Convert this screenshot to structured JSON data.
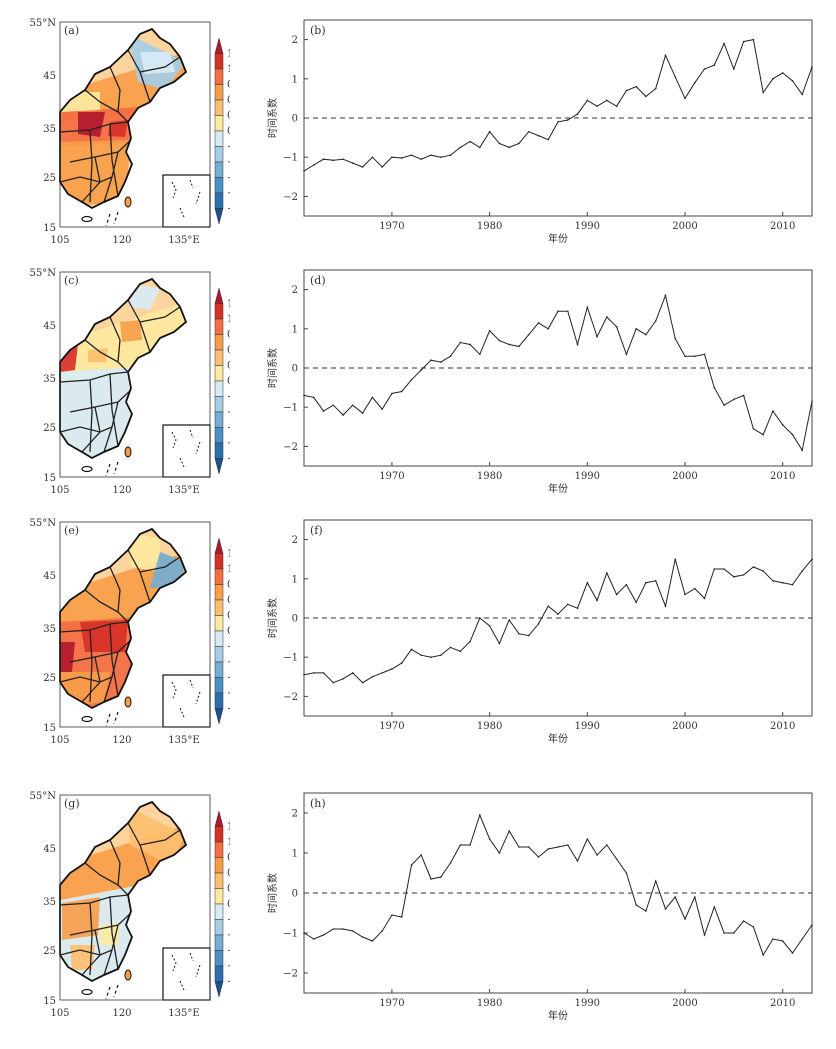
{
  "common": {
    "map_lat_ticks": [
      "55°N",
      "45",
      "35",
      "25",
      "15"
    ],
    "map_lon_ticks": [
      "105",
      "120",
      "135°E"
    ],
    "colorbar_ticks": [
      "1.5",
      "1.2",
      "0.9",
      "0.6",
      "0.3",
      "0",
      "−0.3",
      "−0.6",
      "−0.9",
      "−1.2",
      "−1.5"
    ],
    "colorbar_colors": [
      "#b2182b",
      "#d73027",
      "#f46d43",
      "#f99d4a",
      "#fdbf6f",
      "#fee9a0",
      "#d7ebf5",
      "#a6cde6",
      "#74add1",
      "#4a90c8",
      "#2c6fb0",
      "#1d4f91"
    ],
    "ts_ylabel": "时间系数",
    "ts_xlabel": "年份",
    "ts_xticks": [
      "1970",
      "1980",
      "1990",
      "2000",
      "2010"
    ],
    "ts_yticks": [
      "2",
      "1",
      "0",
      "−1",
      "−2"
    ]
  },
  "panels": [
    {
      "map_label": "(a)",
      "ts_label": "(b)"
    },
    {
      "map_label": "(c)",
      "ts_label": "(d)"
    },
    {
      "map_label": "(e)",
      "ts_label": "(f)"
    },
    {
      "map_label": "(g)",
      "ts_label": "(h)"
    }
  ],
  "chart_data": [
    {
      "type": "line",
      "title": "(b)",
      "xlabel": "年份",
      "ylabel": "时间系数",
      "xlim": [
        1961,
        2013
      ],
      "ylim": [
        -2.5,
        2.5
      ],
      "reference_line": 0,
      "x": [
        1961,
        1962,
        1963,
        1964,
        1965,
        1966,
        1967,
        1968,
        1969,
        1970,
        1971,
        1972,
        1973,
        1974,
        1975,
        1976,
        1977,
        1978,
        1979,
        1980,
        1981,
        1982,
        1983,
        1984,
        1985,
        1986,
        1987,
        1988,
        1989,
        1990,
        1991,
        1992,
        1993,
        1994,
        1995,
        1996,
        1997,
        1998,
        1999,
        2000,
        2001,
        2002,
        2003,
        2004,
        2005,
        2006,
        2007,
        2008,
        2009,
        2010,
        2011,
        2012,
        2013
      ],
      "values": [
        -1.35,
        -1.2,
        -1.05,
        -1.08,
        -1.05,
        -1.15,
        -1.25,
        -1.0,
        -1.25,
        -1.0,
        -1.02,
        -0.95,
        -1.05,
        -0.95,
        -1.0,
        -0.95,
        -0.75,
        -0.6,
        -0.75,
        -0.35,
        -0.65,
        -0.75,
        -0.65,
        -0.35,
        -0.45,
        -0.55,
        -0.1,
        -0.05,
        0.1,
        0.45,
        0.3,
        0.45,
        0.3,
        0.7,
        0.8,
        0.55,
        0.75,
        1.6,
        1.05,
        0.5,
        0.9,
        1.25,
        1.35,
        1.9,
        1.25,
        1.95,
        2.0,
        0.65,
        1.0,
        1.15,
        0.95,
        0.6,
        1.3
      ]
    },
    {
      "type": "line",
      "title": "(d)",
      "xlabel": "年份",
      "ylabel": "时间系数",
      "xlim": [
        1961,
        2013
      ],
      "ylim": [
        -2.5,
        2.5
      ],
      "reference_line": 0,
      "x": [
        1961,
        1962,
        1963,
        1964,
        1965,
        1966,
        1967,
        1968,
        1969,
        1970,
        1971,
        1972,
        1973,
        1974,
        1975,
        1976,
        1977,
        1978,
        1979,
        1980,
        1981,
        1982,
        1983,
        1984,
        1985,
        1986,
        1987,
        1988,
        1989,
        1990,
        1991,
        1992,
        1993,
        1994,
        1995,
        1996,
        1997,
        1998,
        1999,
        2000,
        2001,
        2002,
        2003,
        2004,
        2005,
        2006,
        2007,
        2008,
        2009,
        2010,
        2011,
        2012,
        2013
      ],
      "values": [
        -0.7,
        -0.75,
        -1.1,
        -0.95,
        -1.2,
        -0.95,
        -1.15,
        -0.75,
        -1.05,
        -0.65,
        -0.6,
        -0.3,
        -0.05,
        0.2,
        0.15,
        0.3,
        0.65,
        0.6,
        0.35,
        0.95,
        0.7,
        0.6,
        0.55,
        0.85,
        1.15,
        1.0,
        1.45,
        1.45,
        0.6,
        1.55,
        0.8,
        1.3,
        1.05,
        0.35,
        1.0,
        0.85,
        1.2,
        1.85,
        0.75,
        0.3,
        0.3,
        0.35,
        -0.5,
        -0.95,
        -0.8,
        -0.7,
        -1.55,
        -1.7,
        -1.1,
        -1.45,
        -1.7,
        -2.1,
        -0.85
      ]
    },
    {
      "type": "line",
      "title": "(f)",
      "xlabel": "年份",
      "ylabel": "时间系数",
      "xlim": [
        1961,
        2013
      ],
      "ylim": [
        -2.5,
        2.5
      ],
      "reference_line": 0,
      "x": [
        1961,
        1962,
        1963,
        1964,
        1965,
        1966,
        1967,
        1968,
        1969,
        1970,
        1971,
        1972,
        1973,
        1974,
        1975,
        1976,
        1977,
        1978,
        1979,
        1980,
        1981,
        1982,
        1983,
        1984,
        1985,
        1986,
        1987,
        1988,
        1989,
        1990,
        1991,
        1992,
        1993,
        1994,
        1995,
        1996,
        1997,
        1998,
        1999,
        2000,
        2001,
        2002,
        2003,
        2004,
        2005,
        2006,
        2007,
        2008,
        2009,
        2010,
        2011,
        2012,
        2013
      ],
      "values": [
        -1.45,
        -1.4,
        -1.4,
        -1.65,
        -1.55,
        -1.4,
        -1.65,
        -1.5,
        -1.4,
        -1.3,
        -1.15,
        -0.8,
        -0.95,
        -1.0,
        -0.95,
        -0.75,
        -0.85,
        -0.6,
        0.0,
        -0.2,
        -0.65,
        -0.05,
        -0.4,
        -0.45,
        -0.15,
        0.3,
        0.1,
        0.35,
        0.25,
        0.9,
        0.45,
        1.15,
        0.6,
        0.85,
        0.4,
        0.9,
        0.95,
        0.3,
        1.5,
        0.6,
        0.75,
        0.5,
        1.25,
        1.25,
        1.05,
        1.1,
        1.3,
        1.2,
        0.95,
        0.9,
        0.85,
        1.2,
        1.5
      ]
    },
    {
      "type": "line",
      "title": "(h)",
      "xlabel": "年份",
      "ylabel": "时间系数",
      "xlim": [
        1961,
        2013
      ],
      "ylim": [
        -2.5,
        2.5
      ],
      "reference_line": 0,
      "x": [
        1961,
        1962,
        1963,
        1964,
        1965,
        1966,
        1967,
        1968,
        1969,
        1970,
        1971,
        1972,
        1973,
        1974,
        1975,
        1976,
        1977,
        1978,
        1979,
        1980,
        1981,
        1982,
        1983,
        1984,
        1985,
        1986,
        1987,
        1988,
        1989,
        1990,
        1991,
        1992,
        1993,
        1994,
        1995,
        1996,
        1997,
        1998,
        1999,
        2000,
        2001,
        2002,
        2003,
        2004,
        2005,
        2006,
        2007,
        2008,
        2009,
        2010,
        2011,
        2012,
        2013
      ],
      "values": [
        -1.0,
        -1.15,
        -1.05,
        -0.9,
        -0.9,
        -0.95,
        -1.1,
        -1.2,
        -0.95,
        -0.55,
        -0.6,
        0.7,
        0.95,
        0.35,
        0.4,
        0.75,
        1.2,
        1.2,
        1.95,
        1.35,
        1.0,
        1.55,
        1.15,
        1.15,
        0.9,
        1.1,
        1.15,
        1.2,
        0.8,
        1.35,
        0.95,
        1.2,
        0.85,
        0.5,
        -0.3,
        -0.45,
        0.3,
        -0.4,
        -0.1,
        -0.65,
        -0.1,
        -1.05,
        -0.35,
        -1.0,
        -1.0,
        -0.7,
        -0.85,
        -1.55,
        -1.15,
        -1.2,
        -1.5,
        -1.15,
        -0.8
      ]
    }
  ]
}
